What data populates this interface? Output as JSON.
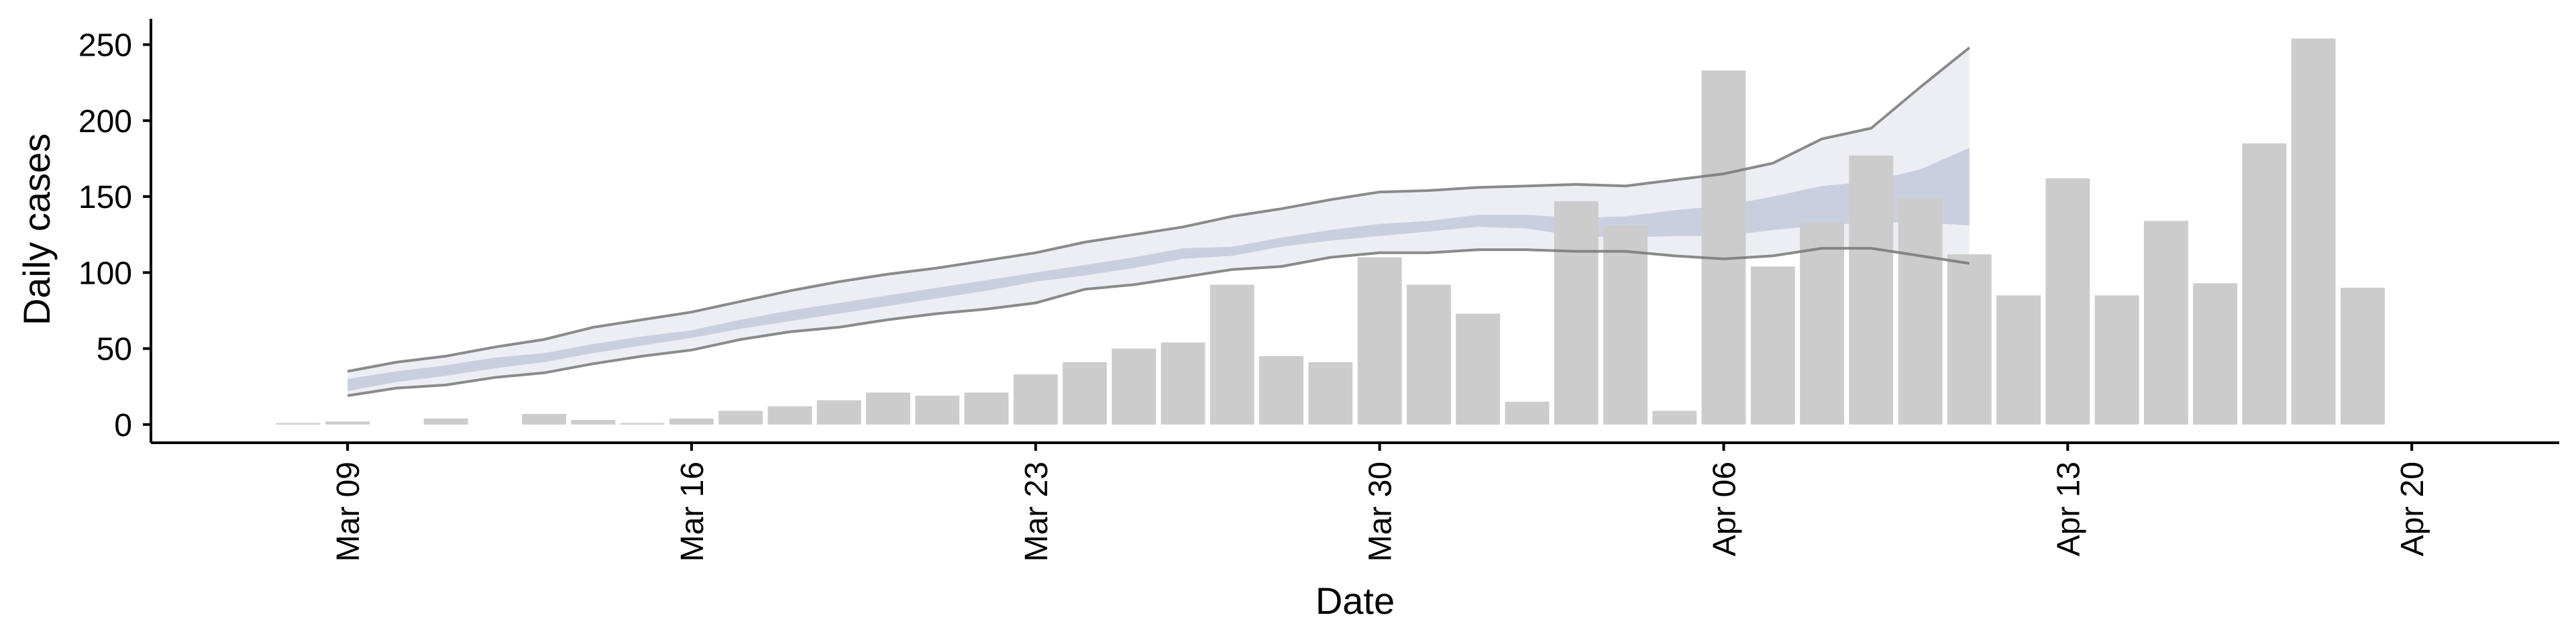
{
  "chart_data": {
    "type": "bar",
    "xlabel": "Date",
    "ylabel": "Daily cases",
    "ylim": [
      -12,
      267
    ],
    "xlim": [
      "2020-03-05",
      "2020-04-23"
    ],
    "y_ticks": [
      0,
      50,
      100,
      150,
      200,
      250
    ],
    "x_ticks": [
      {
        "date": "2020-03-09",
        "label": "Mar 09"
      },
      {
        "date": "2020-03-16",
        "label": "Mar 16"
      },
      {
        "date": "2020-03-23",
        "label": "Mar 23"
      },
      {
        "date": "2020-03-30",
        "label": "Mar 30"
      },
      {
        "date": "2020-04-06",
        "label": "Apr 06"
      },
      {
        "date": "2020-04-13",
        "label": "Apr 13"
      },
      {
        "date": "2020-04-20",
        "label": "Apr 20"
      }
    ],
    "x_tick_rotation_deg": 90,
    "grid": false,
    "legend": "none",
    "bars": {
      "color": "#cccccc",
      "x": [
        "2020-03-08",
        "2020-03-09",
        "2020-03-10",
        "2020-03-11",
        "2020-03-12",
        "2020-03-13",
        "2020-03-14",
        "2020-03-15",
        "2020-03-16",
        "2020-03-17",
        "2020-03-18",
        "2020-03-19",
        "2020-03-20",
        "2020-03-21",
        "2020-03-22",
        "2020-03-23",
        "2020-03-24",
        "2020-03-25",
        "2020-03-26",
        "2020-03-27",
        "2020-03-28",
        "2020-03-29",
        "2020-03-30",
        "2020-03-31",
        "2020-04-01",
        "2020-04-02",
        "2020-04-03",
        "2020-04-04",
        "2020-04-05",
        "2020-04-06",
        "2020-04-07",
        "2020-04-08",
        "2020-04-09",
        "2020-04-10",
        "2020-04-11",
        "2020-04-12",
        "2020-04-13",
        "2020-04-14",
        "2020-04-15",
        "2020-04-16",
        "2020-04-17",
        "2020-04-18",
        "2020-04-19",
        "2020-04-20"
      ],
      "values": [
        1,
        2,
        0,
        4,
        0,
        7,
        3,
        1,
        4,
        9,
        12,
        16,
        21,
        19,
        21,
        33,
        41,
        50,
        54,
        92,
        45,
        41,
        110,
        92,
        73,
        15,
        147,
        131,
        9,
        233,
        104,
        133,
        177,
        149,
        112,
        85,
        162,
        85,
        134,
        93,
        185,
        254,
        90,
        null
      ]
    },
    "band_dates": [
      "2020-03-09",
      "2020-03-10",
      "2020-03-11",
      "2020-03-12",
      "2020-03-13",
      "2020-03-14",
      "2020-03-15",
      "2020-03-16",
      "2020-03-17",
      "2020-03-18",
      "2020-03-19",
      "2020-03-20",
      "2020-03-21",
      "2020-03-22",
      "2020-03-23",
      "2020-03-24",
      "2020-03-25",
      "2020-03-26",
      "2020-03-27",
      "2020-03-28",
      "2020-03-29",
      "2020-03-30",
      "2020-03-31",
      "2020-04-01",
      "2020-04-02",
      "2020-04-03",
      "2020-04-04",
      "2020-04-05",
      "2020-04-06",
      "2020-04-07",
      "2020-04-08",
      "2020-04-09",
      "2020-04-10",
      "2020-04-11"
    ],
    "outer_band": {
      "color": "#d6d9e6",
      "lower": [
        19,
        24,
        26,
        31,
        34,
        40,
        45,
        49,
        56,
        61,
        64,
        69,
        73,
        76,
        80,
        89,
        92,
        97,
        102,
        104,
        110,
        113,
        113,
        115,
        115,
        114,
        114,
        111,
        109,
        111,
        116,
        116,
        111,
        106
      ],
      "upper": [
        35,
        41,
        45,
        51,
        56,
        64,
        69,
        74,
        81,
        88,
        94,
        99,
        103,
        108,
        113,
        120,
        125,
        130,
        137,
        142,
        148,
        153,
        154,
        156,
        157,
        158,
        157,
        161,
        165,
        172,
        188,
        195,
        222,
        248
      ]
    },
    "inner_band": {
      "color": "#c3c9dc",
      "lower": [
        22,
        28,
        32,
        37,
        41,
        47,
        52,
        57,
        63,
        68,
        73,
        78,
        83,
        88,
        94,
        98,
        103,
        109,
        111,
        117,
        121,
        124,
        127,
        130,
        129,
        124,
        123,
        124,
        124,
        128,
        131,
        133,
        133,
        131
      ],
      "upper": [
        30,
        35,
        39,
        44,
        47,
        53,
        58,
        62,
        69,
        75,
        80,
        85,
        90,
        95,
        100,
        105,
        110,
        116,
        117,
        123,
        128,
        132,
        134,
        138,
        138,
        136,
        137,
        141,
        144,
        150,
        157,
        160,
        168,
        182
      ]
    },
    "hidden_bar_note": null
  }
}
